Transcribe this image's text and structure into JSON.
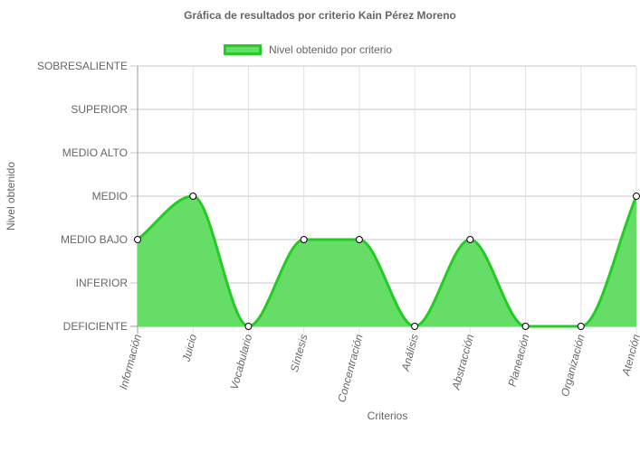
{
  "chart_data": {
    "type": "area",
    "title": "Gráfica de resultados por criterio Kain Pérez Moreno",
    "xlabel": "Criterios",
    "ylabel": "Nivel obtenido",
    "y_levels": [
      "DEFICIENTE",
      "INFERIOR",
      "MEDIO BAJO",
      "MEDIO",
      "MEDIO ALTO",
      "SUPERIOR",
      "SOBRESALIENTE"
    ],
    "ylim": [
      0,
      6
    ],
    "categories": [
      "Información",
      "Juicio",
      "Vocabulario",
      "Síntesis",
      "Concentración",
      "Análisis",
      "Abstracción",
      "Planeación",
      "Organización",
      "Atención"
    ],
    "series": [
      {
        "name": "Nivel obtenido por criterio",
        "values": [
          2,
          3,
          0,
          2,
          2,
          0,
          2,
          0,
          0,
          3
        ],
        "fill_color": "#66dd66",
        "line_color": "#22cc22"
      }
    ],
    "grid": true,
    "legend_position": "top"
  }
}
